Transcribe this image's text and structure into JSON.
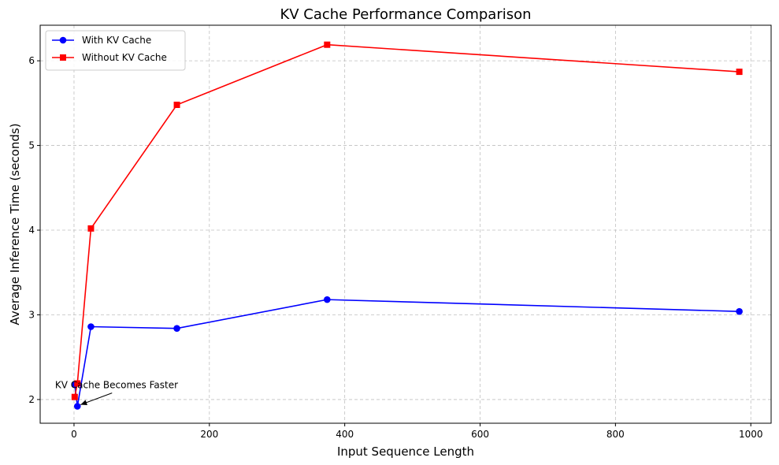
{
  "chart_data": {
    "type": "line",
    "title": "KV Cache Performance Comparison",
    "xlabel": "Input Sequence Length",
    "ylabel": "Average Inference Time (seconds)",
    "xlim": [
      -50,
      1030
    ],
    "ylim": [
      1.72,
      6.42
    ],
    "xticks": [
      0,
      200,
      400,
      600,
      800,
      1000
    ],
    "yticks": [
      2,
      3,
      4,
      5,
      6
    ],
    "grid": true,
    "legend_position": "top-left",
    "series": [
      {
        "name": "With KV Cache",
        "color": "#0000ff",
        "marker": "circle",
        "x": [
          1,
          5,
          25,
          152,
          374,
          983
        ],
        "y": [
          2.18,
          1.92,
          2.86,
          2.84,
          3.18,
          3.04
        ]
      },
      {
        "name": "Without KV Cache",
        "color": "#ff0000",
        "marker": "square",
        "x": [
          1,
          5,
          25,
          152,
          374,
          983
        ],
        "y": [
          2.03,
          2.19,
          4.02,
          5.48,
          6.19,
          5.87
        ]
      }
    ],
    "annotation": {
      "text": "KV Cache Becomes Faster",
      "x": 5,
      "y": 1.92,
      "text_x": -28,
      "text_y": 2.17
    }
  }
}
